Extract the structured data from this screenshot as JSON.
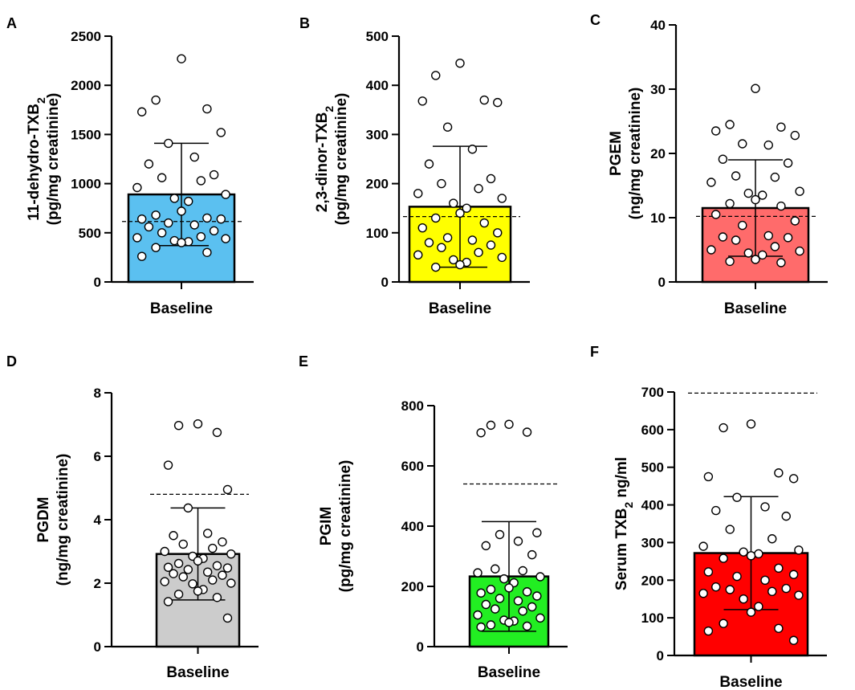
{
  "figure": {
    "panels": [
      "A",
      "B",
      "C",
      "D",
      "E",
      "F"
    ]
  },
  "chart_data": [
    {
      "panel": "A",
      "type": "bar",
      "categories": [
        "Baseline"
      ],
      "bar_color": "#5bc0f0",
      "ylabel_line1": "11-dehydro-TXB",
      "ylabel_line1_sub": "2",
      "ylabel_line2": "(pg/mg creatinine)",
      "ylim": [
        0,
        2500
      ],
      "yticks": [
        0,
        500,
        1000,
        1500,
        2000,
        2500
      ],
      "mean": 890,
      "sd_upper": 1410,
      "sd_lower": 370,
      "reference_line": 615,
      "points": [
        2270,
        1850,
        1760,
        1730,
        1520,
        1410,
        1270,
        1200,
        1090,
        1060,
        1030,
        960,
        890,
        850,
        820,
        720,
        680,
        650,
        640,
        640,
        600,
        580,
        560,
        520,
        500,
        460,
        450,
        440,
        420,
        410,
        400,
        350,
        300,
        260
      ]
    },
    {
      "panel": "B",
      "type": "bar",
      "categories": [
        "Baseline"
      ],
      "bar_color": "#ffff00",
      "ylabel_line1": "2,3-dinor-TXB",
      "ylabel_line1_sub": "2",
      "ylabel_line2": "(pg/mg creatinine)",
      "ylim": [
        0,
        500
      ],
      "yticks": [
        0,
        100,
        200,
        300,
        400,
        500
      ],
      "mean": 153,
      "sd_upper": 276,
      "sd_lower": 30,
      "reference_line": 133,
      "points": [
        445,
        420,
        370,
        368,
        365,
        315,
        270,
        240,
        210,
        200,
        190,
        180,
        170,
        160,
        150,
        140,
        130,
        120,
        110,
        100,
        90,
        85,
        80,
        75,
        70,
        60,
        55,
        50,
        45,
        40,
        35,
        30
      ]
    },
    {
      "panel": "C",
      "type": "bar",
      "categories": [
        "Baseline"
      ],
      "bar_color": "#ff6b6b",
      "ylabel_line1": "PGEM",
      "ylabel_line2": "(ng/mg creatinine)",
      "ylim": [
        0,
        40
      ],
      "yticks": [
        0,
        10,
        20,
        30,
        40
      ],
      "mean": 11.5,
      "sd_upper": 19,
      "sd_lower": 4,
      "reference_line": 10.2,
      "points": [
        30.1,
        24.5,
        24.1,
        23.5,
        22.8,
        21.5,
        21.3,
        19.1,
        18.5,
        16.5,
        16.3,
        15.5,
        14.1,
        13.8,
        13.5,
        12.8,
        12.2,
        11.8,
        10.5,
        9.5,
        8.8,
        7.2,
        7.0,
        6.9,
        6.5,
        5.5,
        5.0,
        4.8,
        4.5,
        4.2,
        3.5,
        3.2,
        3.0
      ]
    },
    {
      "panel": "D",
      "type": "bar",
      "categories": [
        "Baseline"
      ],
      "bar_color": "#cccccc",
      "ylabel_line1": "PGDM",
      "ylabel_line2": "(ng/mg creatinine)",
      "ylim": [
        0,
        8
      ],
      "yticks": [
        0,
        2,
        4,
        6,
        8
      ],
      "mean": 2.92,
      "sd_upper": 4.37,
      "sd_lower": 1.47,
      "reference_line": 4.8,
      "points": [
        7.02,
        6.97,
        6.75,
        5.72,
        4.95,
        4.37,
        3.57,
        3.5,
        3.3,
        3.23,
        3.1,
        3.0,
        2.92,
        2.85,
        2.78,
        2.7,
        2.62,
        2.55,
        2.5,
        2.48,
        2.43,
        2.35,
        2.3,
        2.25,
        2.2,
        2.1,
        2.05,
        2.0,
        1.98,
        1.8,
        1.75,
        1.65,
        1.55,
        1.42,
        0.9
      ]
    },
    {
      "panel": "E",
      "type": "bar",
      "categories": [
        "Baseline"
      ],
      "bar_color": "#22ee22",
      "ylabel_line1": "PGIM",
      "ylabel_line2": "(pg/mg creatinine)",
      "ylim": [
        0,
        800
      ],
      "yticks": [
        0,
        200,
        400,
        600,
        800
      ],
      "mean": 233,
      "sd_upper": 415,
      "sd_lower": 51,
      "reference_line": 540,
      "points": [
        738,
        735,
        712,
        710,
        378,
        372,
        350,
        335,
        305,
        258,
        252,
        245,
        232,
        225,
        212,
        195,
        190,
        182,
        178,
        168,
        160,
        152,
        140,
        132,
        125,
        118,
        105,
        95,
        88,
        85,
        80,
        72,
        68,
        65
      ]
    },
    {
      "panel": "F",
      "type": "bar",
      "categories": [
        "Baseline"
      ],
      "bar_color": "#ff0000",
      "ylabel_line1": "Serum TXB",
      "ylabel_line1_sub": "2",
      "ylabel_line1_tail": " ng/ml",
      "ylim": [
        0,
        700
      ],
      "yticks": [
        0,
        100,
        200,
        300,
        400,
        500,
        600,
        700
      ],
      "mean": 272,
      "sd_upper": 422,
      "sd_lower": 122,
      "reference_line": 697,
      "points": [
        615,
        605,
        485,
        475,
        470,
        420,
        395,
        385,
        370,
        335,
        310,
        290,
        280,
        275,
        270,
        265,
        258,
        232,
        222,
        215,
        210,
        200,
        182,
        178,
        175,
        170,
        165,
        160,
        150,
        130,
        115,
        85,
        72,
        65,
        40
      ]
    }
  ]
}
